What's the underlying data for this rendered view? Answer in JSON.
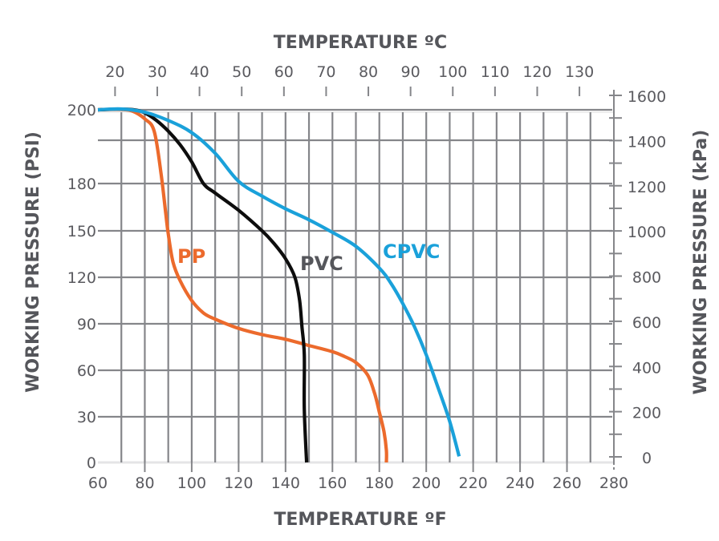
{
  "chart_data": {
    "type": "line",
    "title": "",
    "xlabel": "TEMPERATURE ºF",
    "x2label": "TEMPERATURE ºC",
    "ylabel": "WORKING PRESSURE (PSI)",
    "y2label": "WORKING PRESSURE (kPa)",
    "xlim": [
      60,
      280
    ],
    "x_ticks": [
      60,
      80,
      100,
      120,
      140,
      160,
      180,
      200,
      220,
      240,
      260,
      280
    ],
    "x2_ticks": [
      20,
      30,
      40,
      50,
      60,
      70,
      80,
      90,
      100,
      110,
      120,
      130
    ],
    "y_ticks": [
      0,
      30,
      60,
      90,
      120,
      150,
      180,
      200
    ],
    "y2lim": [
      0,
      1600
    ],
    "y2_ticks": [
      0,
      200,
      400,
      600,
      800,
      1000,
      1200,
      1400,
      1600
    ],
    "grid": true,
    "series": [
      {
        "name": "PP",
        "color": "#ec6a2c",
        "x": [
          60,
          65,
          70,
          75,
          80,
          84,
          87,
          89,
          90,
          92,
          95,
          100,
          105,
          110,
          120,
          130,
          140,
          150,
          160,
          165,
          170,
          175,
          178,
          180,
          182,
          183,
          183
        ],
        "y": [
          200,
          200.2,
          200.2,
          199.5,
          197,
          193,
          182,
          160,
          148,
          130,
          118,
          105,
          97,
          93,
          87,
          83,
          80,
          76,
          72,
          69,
          65,
          57,
          45,
          33,
          20,
          8,
          0
        ]
      },
      {
        "name": "PVC",
        "color": "#0d0d0d",
        "x": [
          60,
          68,
          75,
          80,
          85,
          90,
          95,
          100,
          105,
          110,
          120,
          130,
          135,
          140,
          144,
          146,
          147,
          148,
          148,
          149
        ],
        "y": [
          200,
          200.3,
          200.1,
          199,
          196.5,
          193,
          189,
          185,
          180,
          174,
          163,
          150,
          142,
          132,
          120,
          105,
          88,
          70,
          35,
          0
        ]
      },
      {
        "name": "CPVC",
        "color": "#1aa1da",
        "x": [
          60,
          70,
          80,
          90,
          100,
          110,
          120,
          130,
          140,
          150,
          160,
          170,
          180,
          185,
          190,
          195,
          200,
          205,
          210,
          214
        ],
        "y": [
          200,
          200.4,
          199.2,
          196.5,
          192.5,
          187,
          180.5,
          172,
          164,
          157,
          149,
          140,
          126,
          116,
          103,
          88,
          70,
          49,
          27,
          4
        ]
      }
    ],
    "annotations": [
      {
        "text": "PP",
        "color": "#ec6a2c"
      },
      {
        "text": "PVC",
        "color": "#55565b"
      },
      {
        "text": "CPVC",
        "color": "#1aa1da"
      }
    ]
  }
}
